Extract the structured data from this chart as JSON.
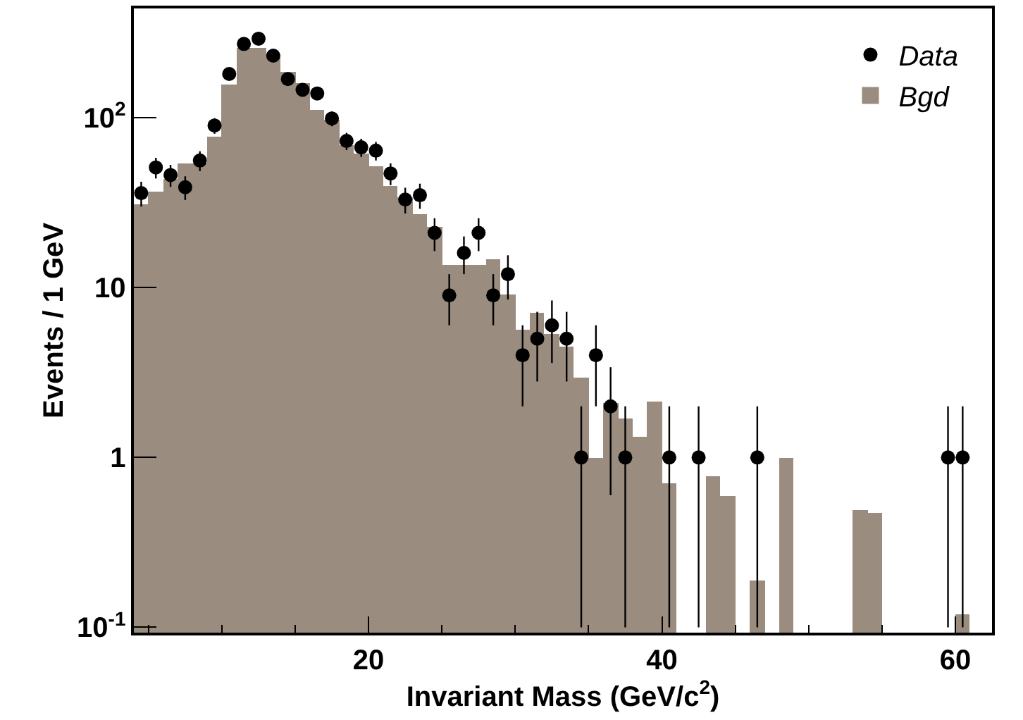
{
  "chart_data": {
    "type": "histogram",
    "xlabel": "Invariant Mass (GeV/c$^{2}$)",
    "ylabel": "Events / 1 GeV",
    "log": "y",
    "legend": "top right",
    "xlim": [
      4,
      62.5
    ],
    "xticks": [
      20,
      40,
      60
    ],
    "ylim": [
      0.093,
      440
    ],
    "yticks": [
      {
        "value": 0.1,
        "label": "10$^{-1}$"
      },
      1,
      10,
      {
        "value": 100,
        "label": "10$^{2}$"
      }
    ],
    "series": [
      {
        "name": "Data",
        "type": "scatter",
        "marker": "circle",
        "color": "#000000",
        "x": [
          4.5,
          5.5,
          6.5,
          7.5,
          8.5,
          9.5,
          10.5,
          11.5,
          12.5,
          13.5,
          14.5,
          15.5,
          16.5,
          17.5,
          18.5,
          19.5,
          20.5,
          21.5,
          22.5,
          23.5,
          24.5,
          25.5,
          26.5,
          27.5,
          28.5,
          29.5,
          30.5,
          31.5,
          32.5,
          33.5,
          34.5,
          35.5,
          36.5,
          37.5,
          40.5,
          42.5,
          46.5,
          59.5,
          60.5
        ],
        "values": [
          36,
          51,
          46,
          39,
          56,
          90,
          181,
          272,
          292,
          232,
          169,
          146,
          139,
          99,
          73,
          67,
          64,
          47,
          33,
          35,
          21,
          9,
          16,
          21,
          9,
          12,
          4,
          5,
          6,
          5,
          1,
          4,
          2,
          1,
          1,
          1,
          1,
          1,
          1
        ],
        "errors": [
          6.0,
          7.1,
          6.8,
          6.2,
          7.5,
          9.5,
          13.5,
          16.5,
          17.1,
          15.2,
          13.0,
          12.1,
          11.8,
          9.9,
          8.5,
          8.2,
          8.0,
          6.9,
          5.7,
          5.9,
          4.6,
          3,
          4,
          4.6,
          3,
          3.5,
          2,
          2.2,
          2.4,
          2.2,
          [
            0.1,
            2
          ],
          2,
          1.4,
          [
            0.1,
            2
          ],
          [
            0.1,
            2
          ],
          [
            0.1,
            2
          ],
          [
            0.1,
            2
          ],
          [
            0.1,
            2
          ],
          [
            0.1,
            2
          ]
        ]
      },
      {
        "name": "Bgd",
        "color": "#9a8c7f",
        "bins": [
          4,
          5,
          6,
          7,
          8,
          9,
          10,
          11,
          12,
          13,
          14,
          15,
          16,
          17,
          18,
          19,
          20,
          21,
          22,
          23,
          24,
          25,
          26,
          27,
          28,
          29,
          30,
          31,
          32,
          33,
          34,
          35,
          36,
          37,
          38,
          39,
          40,
          41,
          42,
          43,
          44,
          45,
          46,
          47,
          48,
          49,
          50,
          51,
          52,
          53,
          54,
          55,
          56,
          57,
          58,
          59,
          60,
          61,
          62
        ],
        "values": [
          31,
          37,
          44,
          54,
          54,
          78,
          158,
          258,
          258,
          240,
          186,
          161,
          111,
          98,
          69,
          62,
          52,
          40,
          34,
          27,
          23,
          13.6,
          13.6,
          13.6,
          14.7,
          9.1,
          5.6,
          7.1,
          5.3,
          4.5,
          2.95,
          1.0,
          2.1,
          1.7,
          1.33,
          2.15,
          0.7,
          null,
          null,
          0.78,
          0.59,
          null,
          0.19,
          null,
          1.0,
          null,
          null,
          null,
          null,
          0.49,
          0.47,
          null,
          null,
          null,
          null,
          null,
          0.12,
          null
        ]
      }
    ]
  }
}
